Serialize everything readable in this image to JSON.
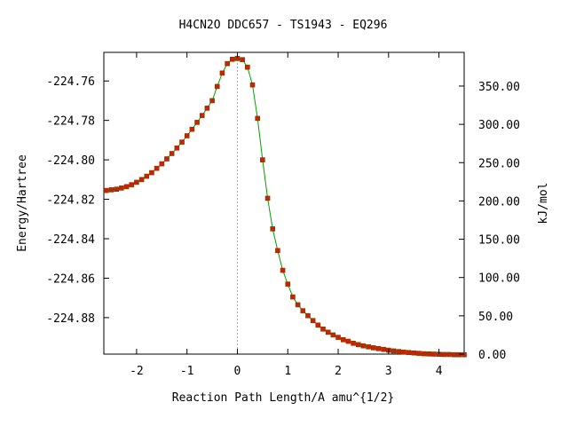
{
  "chart_data": {
    "type": "line",
    "title": "H4CN2O   DDC657 - TS1943 - EQ296",
    "xlabel": "Reaction Path Length/A amu^{1/2}",
    "ylabel": "Energy/Hartree",
    "y2label": "kJ/mol",
    "xlim": [
      -2.65,
      4.5
    ],
    "ylim": [
      -224.8985,
      -224.7455
    ],
    "y2lim": [
      0,
      394
    ],
    "x_ticks": [
      -2,
      -1,
      0,
      1,
      2,
      3,
      4
    ],
    "x_tick_labels": [
      "-2",
      "-1",
      "0",
      "1",
      "2",
      "3",
      "4"
    ],
    "y_ticks": [
      -224.76,
      -224.78,
      -224.8,
      -224.82,
      -224.84,
      -224.86,
      -224.88
    ],
    "y_tick_labels": [
      "-224.76",
      "-224.78",
      "-224.80",
      "-224.82",
      "-224.84",
      "-224.86",
      "-224.88"
    ],
    "y2_ticks": [
      350,
      300,
      250,
      200,
      150,
      100,
      50,
      0
    ],
    "y2_tick_labels": [
      "350.00",
      "300.00",
      "250.00",
      "200.00",
      "150.00",
      "100.00",
      "50.00",
      "0.00"
    ],
    "ts_marker_x": 0,
    "line_color": "#00a000",
    "marker_color": "#cc2200",
    "marker_edge_color": "#7a3a00",
    "series": [
      {
        "x": [
          -2.6,
          -2.5,
          -2.4,
          -2.3,
          -2.2,
          -2.1,
          -2.0,
          -1.9,
          -1.8,
          -1.7,
          -1.6,
          -1.5,
          -1.4,
          -1.3,
          -1.2,
          -1.1,
          -1.0,
          -0.9,
          -0.8,
          -0.7,
          -0.6,
          -0.5,
          -0.4,
          -0.3,
          -0.2,
          -0.1,
          0.0,
          0.1,
          0.2,
          0.3,
          0.4,
          0.5,
          0.6,
          0.7,
          0.8,
          0.9,
          1.0,
          1.1,
          1.2,
          1.3,
          1.4,
          1.5,
          1.6,
          1.7,
          1.8,
          1.9,
          2.0,
          2.1,
          2.2,
          2.3,
          2.4,
          2.5,
          2.6,
          2.7,
          2.8,
          2.9,
          3.0,
          3.1,
          3.2,
          3.3,
          3.4,
          3.5,
          3.6,
          3.7,
          3.8,
          3.9,
          4.0,
          4.1,
          4.2,
          4.3,
          4.4,
          4.5
        ],
        "y": [
          -224.8155,
          -224.8152,
          -224.8149,
          -224.8143,
          -224.8136,
          -224.8126,
          -224.8114,
          -224.81,
          -224.8083,
          -224.8065,
          -224.8043,
          -224.802,
          -224.7995,
          -224.7968,
          -224.794,
          -224.791,
          -224.7878,
          -224.7845,
          -224.781,
          -224.7775,
          -224.7738,
          -224.77,
          -224.7628,
          -224.756,
          -224.7512,
          -224.749,
          -224.7486,
          -224.7492,
          -224.753,
          -224.762,
          -224.779,
          -224.8,
          -224.8195,
          -224.835,
          -224.846,
          -224.856,
          -224.863,
          -224.8695,
          -224.8735,
          -224.8765,
          -224.879,
          -224.8815,
          -224.8838,
          -224.8858,
          -224.8874,
          -224.8888,
          -224.89,
          -224.8912,
          -224.892,
          -224.893,
          -224.8937,
          -224.8943,
          -224.8948,
          -224.8953,
          -224.8957,
          -224.8961,
          -224.8965,
          -224.8969,
          -224.8972,
          -224.8975,
          -224.8977,
          -224.8979,
          -224.8981,
          -224.8983,
          -224.8984,
          -224.8985,
          -224.8986,
          -224.8987,
          -224.8987,
          -224.8988,
          -224.8988,
          -224.8988
        ]
      }
    ]
  }
}
